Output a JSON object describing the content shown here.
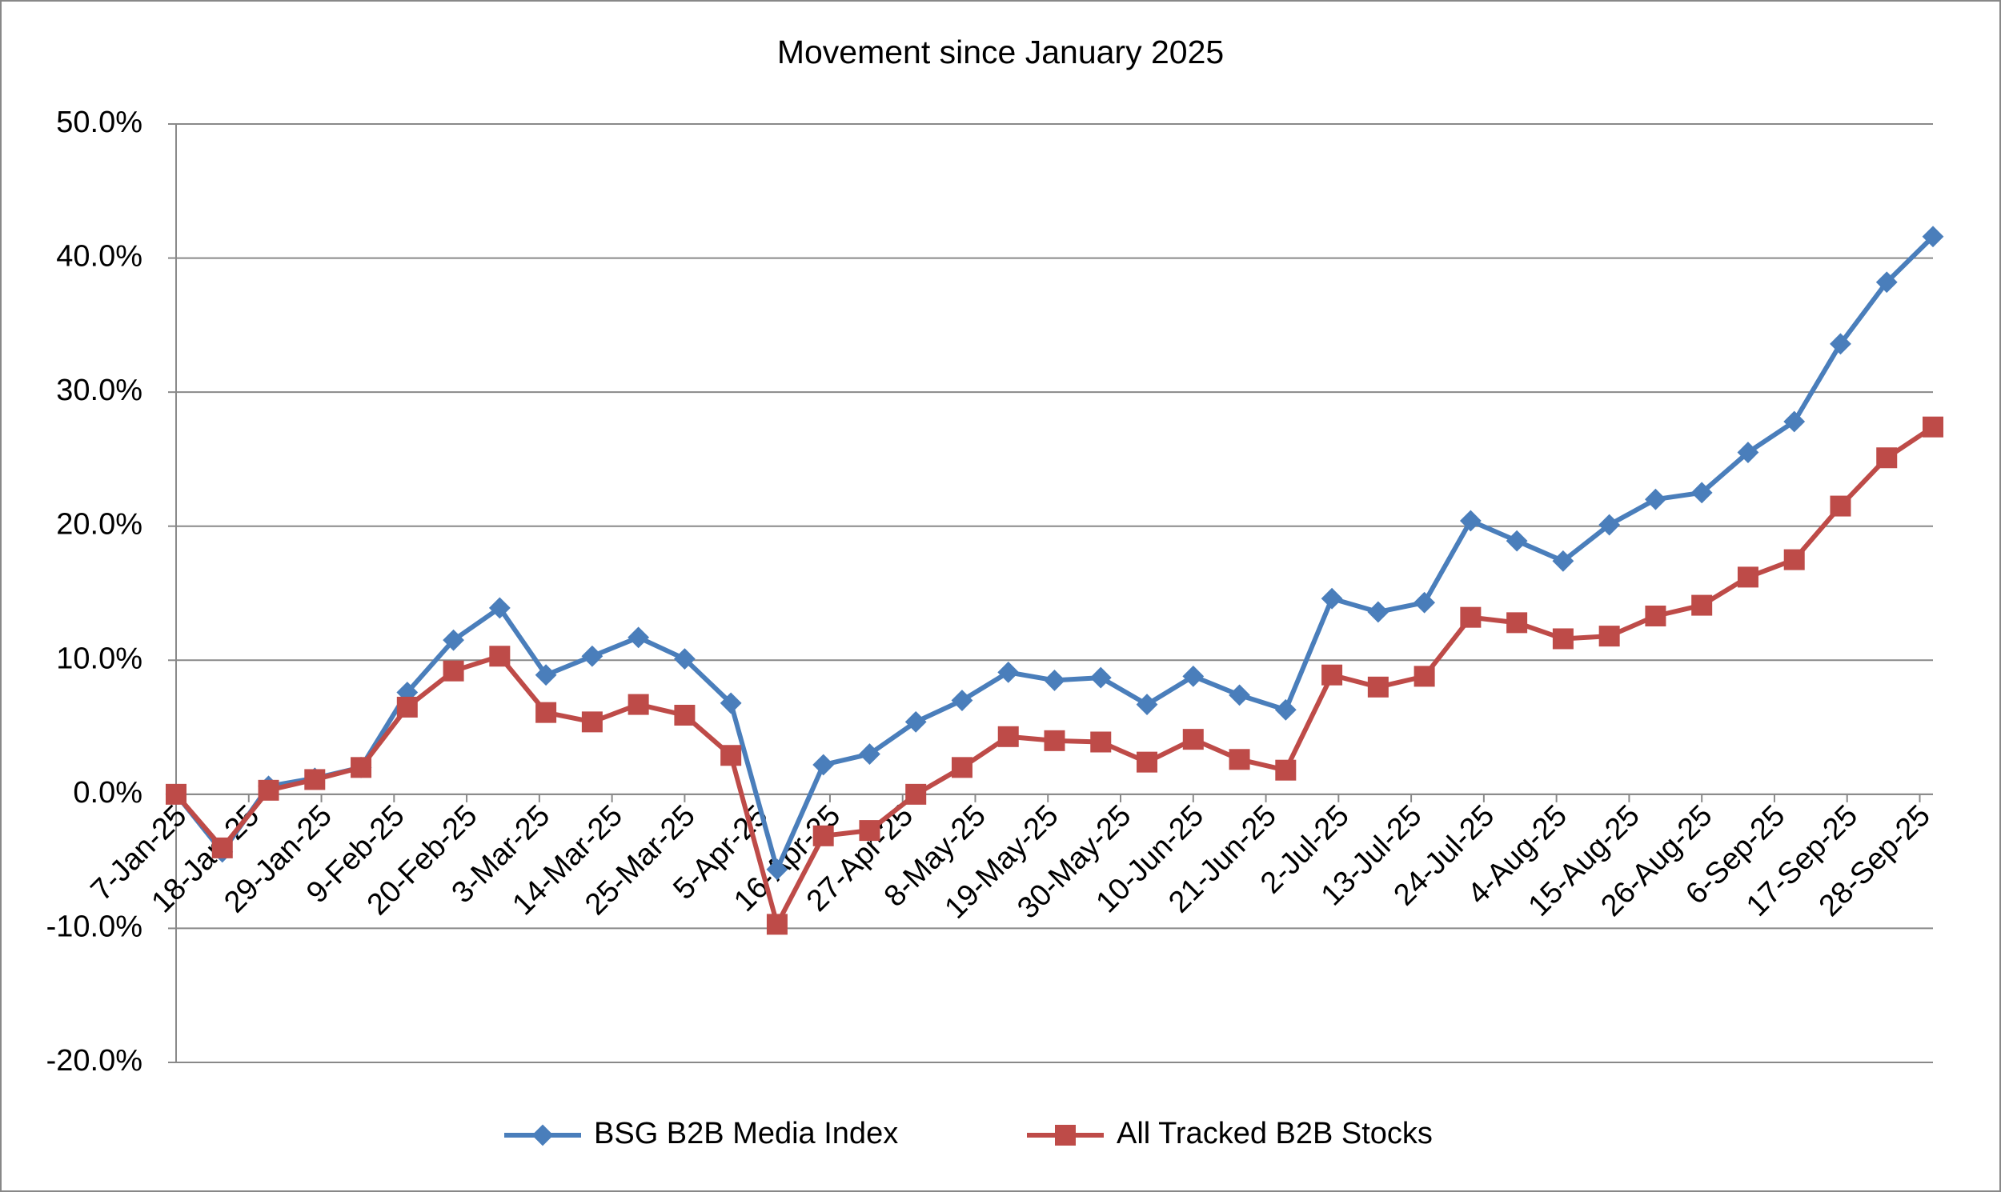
{
  "chart_data": {
    "type": "line",
    "title": "Movement since January 2025",
    "x": [
      "7-Jan-25",
      "14-Jan-25",
      "21-Jan-25",
      "28-Jan-25",
      "4-Feb-25",
      "11-Feb-25",
      "18-Feb-25",
      "25-Feb-25",
      "4-Mar-25",
      "11-Mar-25",
      "18-Mar-25",
      "25-Mar-25",
      "1-Apr-25",
      "8-Apr-25",
      "15-Apr-25",
      "22-Apr-25",
      "29-Apr-25",
      "6-May-25",
      "13-May-25",
      "20-May-25",
      "27-May-25",
      "3-Jun-25",
      "10-Jun-25",
      "17-Jun-25",
      "24-Jun-25",
      "1-Jul-25",
      "8-Jul-25",
      "15-Jul-25",
      "22-Jul-25",
      "29-Jul-25",
      "5-Aug-25",
      "12-Aug-25",
      "19-Aug-25",
      "26-Aug-25",
      "2-Sep-25",
      "9-Sep-25",
      "16-Sep-25",
      "23-Sep-25",
      "30-Sep-25"
    ],
    "series": [
      {
        "name": "BSG B2B Media Index",
        "color": "#4a7ebb",
        "marker": "diamond",
        "values": [
          0,
          -4.3,
          0.6,
          1.2,
          2.0,
          7.6,
          11.5,
          13.9,
          8.9,
          10.3,
          11.7,
          10.1,
          6.8,
          -5.6,
          2.2,
          3.0,
          5.4,
          7.0,
          9.1,
          8.5,
          8.7,
          6.7,
          8.8,
          7.4,
          6.3,
          14.6,
          13.6,
          14.3,
          20.4,
          18.9,
          17.4,
          20.1,
          22.0,
          22.5,
          25.5,
          27.8,
          33.6,
          38.2,
          41.6
        ]
      },
      {
        "name": "All Tracked B2B Stocks",
        "color": "#be4b48",
        "marker": "square",
        "values": [
          0,
          -4.0,
          0.3,
          1.1,
          2.0,
          6.5,
          9.2,
          10.3,
          6.1,
          5.4,
          6.7,
          5.9,
          2.9,
          -9.7,
          -3.1,
          -2.7,
          0.0,
          2.0,
          4.3,
          4.0,
          3.9,
          2.4,
          4.1,
          2.6,
          1.8,
          8.9,
          8.0,
          8.8,
          13.2,
          12.8,
          11.6,
          11.8,
          13.3,
          14.1,
          16.2,
          17.5,
          21.5,
          25.1,
          27.4
        ]
      }
    ],
    "xlim": [
      "7-Jan-25",
      "30-Sep-25"
    ],
    "xticks": [
      "7-Jan-25",
      "18-Jan-25",
      "29-Jan-25",
      "9-Feb-25",
      "20-Feb-25",
      "3-Mar-25",
      "14-Mar-25",
      "25-Mar-25",
      "5-Apr-25",
      "16-Apr-25",
      "27-Apr-25",
      "8-May-25",
      "19-May-25",
      "30-May-25",
      "10-Jun-25",
      "21-Jun-25",
      "2-Jul-25",
      "13-Jul-25",
      "24-Jul-25",
      "4-Aug-25",
      "15-Aug-25",
      "26-Aug-25",
      "6-Sep-25",
      "17-Sep-25",
      "28-Sep-25"
    ],
    "ylim": [
      -20,
      50
    ],
    "yticks": [
      {
        "value": -20,
        "label": "-20.0%"
      },
      {
        "value": -10,
        "label": "-10.0%"
      },
      {
        "value": 0,
        "label": "0.0%"
      },
      {
        "value": 10,
        "label": "10.0%"
      },
      {
        "value": 20,
        "label": "20.0%"
      },
      {
        "value": 30,
        "label": "30.0%"
      },
      {
        "value": 40,
        "label": "40.0%"
      },
      {
        "value": 50,
        "label": "50.0%"
      }
    ],
    "grid": true,
    "legend": "bottom"
  }
}
